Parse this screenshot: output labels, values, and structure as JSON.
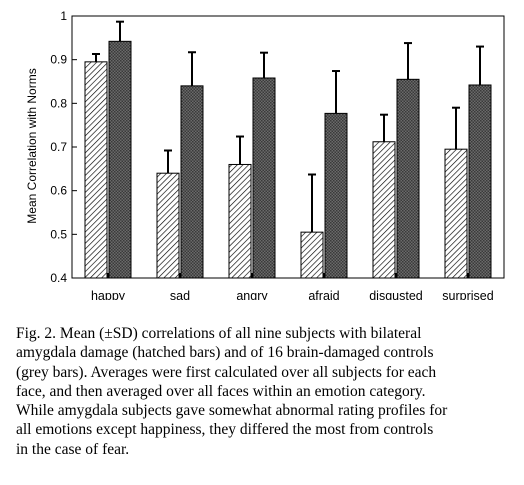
{
  "chart_data": {
    "type": "bar",
    "title": "",
    "xlabel": "",
    "ylabel": "Mean Correlation with Norms",
    "ylim": [
      0.4,
      1.0
    ],
    "yticks": [
      "0.4",
      "0.5",
      "0.6",
      "0.7",
      "0.8",
      "0.9",
      "1"
    ],
    "categories": [
      "happy",
      "sad",
      "angry",
      "afraid",
      "disgusted",
      "surprised"
    ],
    "series": [
      {
        "fill": "hatched",
        "values": [
          0.895,
          0.64,
          0.66,
          0.505,
          0.712,
          0.695
        ],
        "sd": [
          0.018,
          0.052,
          0.064,
          0.132,
          0.062,
          0.095
        ]
      },
      {
        "fill": "grey",
        "values": [
          0.942,
          0.84,
          0.858,
          0.777,
          0.855,
          0.842
        ],
        "sd": [
          0.045,
          0.077,
          0.058,
          0.097,
          0.083,
          0.088
        ]
      }
    ],
    "grid": false,
    "legend": "none",
    "colors": {
      "hatch": "#000000",
      "grey_bar": "#555555",
      "axis": "#000000"
    }
  },
  "caption": {
    "text": "Fig. 2. Mean (±SD) correlations of all nine subjects with bilateral\namygdala damage (hatched bars) and of 16 brain-damaged controls\n(grey bars). Averages were first calculated over all subjects for each\nface, and then averaged over all faces within an emotion category.\nWhile amygdala subjects gave somewhat abnormal rating profiles for\nall emotions except happiness, they differed the most from controls\nin the case of fear."
  }
}
